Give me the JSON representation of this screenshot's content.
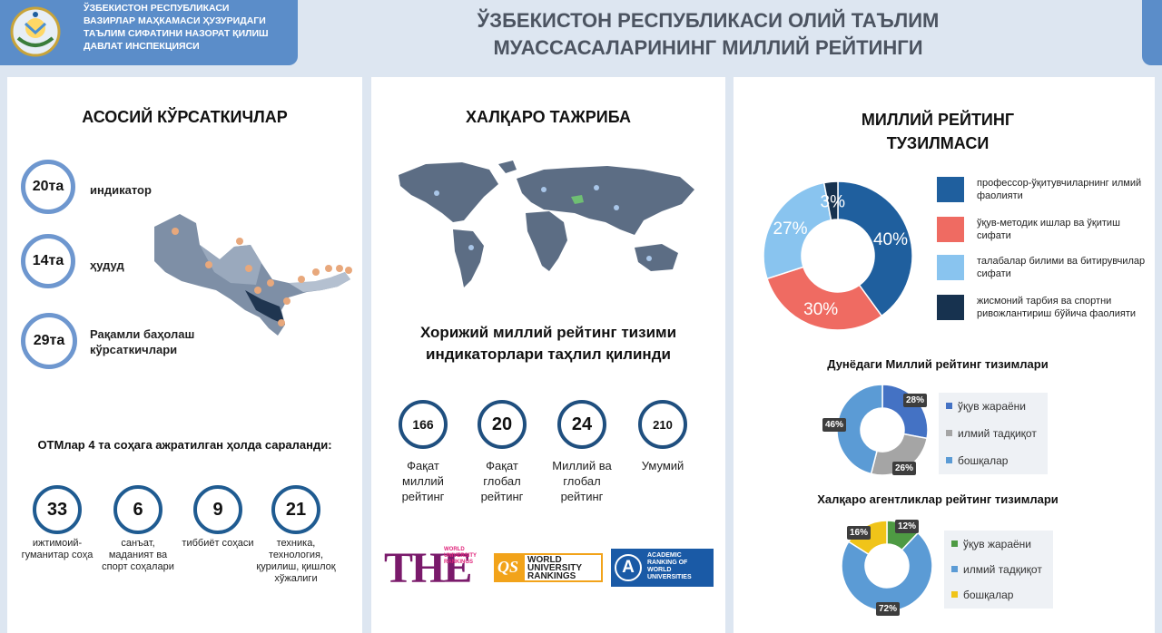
{
  "header": {
    "org_lines": [
      "Ўзбекистон Республикаси",
      "Вазирлар Маҳкамаси ҳузуридаги",
      "Таълим сифатини назорат қилиш",
      "давлат инспекцияси"
    ],
    "title_line1": "ЎЗБЕКИСТОН РЕСПУБЛИКАСИ ОЛИЙ ТАЪЛИМ",
    "title_line2": "МУАССАСАЛАРИНИНГ МИЛЛИЙ РЕЙТИНГИ"
  },
  "panel1": {
    "heading": "АСОСИЙ КЎРСАТКИЧЛАР",
    "indicators": [
      {
        "value": "20та",
        "label": "индикатор"
      },
      {
        "value": "14та",
        "label": "ҳудуд"
      },
      {
        "value": "29та",
        "label": "Рақамли баҳолаш кўрсаткичлари"
      }
    ],
    "sectors_heading": "ОТМлар 4 та соҳага ажратилган ҳолда сараланди:",
    "sectors": [
      {
        "value": "33",
        "label": "ижтимоий-гуманитар соҳа"
      },
      {
        "value": "6",
        "label": "санъат, маданият ва спорт соҳалари"
      },
      {
        "value": "9",
        "label": "тиббиёт соҳаси"
      },
      {
        "value": "21",
        "label": "техника, технология, қурилиш, қишлоқ хўжалиги"
      }
    ],
    "colors": {
      "ring": "#6e97cf",
      "sector_ring": "#1f5b91"
    }
  },
  "panel2": {
    "heading": "ХАЛҚАРО ТАЖРИБА",
    "subheading": "Хорижий миллий рейтинг тизими индикаторлари таҳлил қилинди",
    "counts": [
      {
        "value": "166",
        "label": "Фақат миллий рейтинг"
      },
      {
        "value": "20",
        "label": "Фақат глобал рейтинг"
      },
      {
        "value": "24",
        "label": "Миллий ва глобал рейтинг"
      },
      {
        "value": "210",
        "label": "Умумий"
      }
    ],
    "logos": {
      "the": {
        "big": "THE",
        "small": "WORLD UNIVERSITY RANKINGS"
      },
      "qs": {
        "mark": "QS",
        "text": "WORLD UNIVERSITY RANKINGS"
      },
      "arwu": {
        "mark": "A",
        "text": "ACADEMIC RANKING OF WORLD UNIVERSITIES"
      }
    }
  },
  "panel3": {
    "heading_line1": "МИЛЛИЙ РЕЙТИНГ",
    "heading_line2": "ТУЗИЛМАСИ",
    "chart_data": [
      {
        "type": "pie",
        "categories": [
          "профессор-ўқитувчиларнинг илмий фаолияти",
          "ўқув-методик ишлар ва ўқитиш сифати",
          "талабалар билими ва битирувчилар сифати",
          "жисмоний тарбия ва спортни ривожлантириш бўйича фаолияти"
        ],
        "values": [
          40,
          30,
          27,
          3
        ],
        "value_labels": [
          "40%",
          "30%",
          "27%",
          "3%"
        ],
        "colors": [
          "#1f5f9e",
          "#ef6b62",
          "#89c4ef",
          "#17324f"
        ],
        "title": "",
        "legend": "right"
      },
      {
        "type": "pie",
        "title": "Дунёдаги Миллий рейтинг тизимлари",
        "categories": [
          "ўқув жараёни",
          "илмий тадқиқот",
          "бошқалар"
        ],
        "values": [
          28,
          26,
          46
        ],
        "value_labels": [
          "28%",
          "26%",
          "46%"
        ],
        "colors": [
          "#4472c4",
          "#a5a5a5",
          "#5b9bd5"
        ],
        "legend": "right"
      },
      {
        "type": "pie",
        "title": "Халқаро агентликлар рейтинг тизимлари",
        "categories": [
          "ўқув жараёни",
          "илмий тадқиқот",
          "бошқалар"
        ],
        "values": [
          12,
          72,
          16
        ],
        "value_labels": [
          "12%",
          "72%",
          "16%"
        ],
        "colors": [
          "#4e9a43",
          "#5b9bd5",
          "#f0c419"
        ],
        "legend": "right"
      }
    ]
  }
}
